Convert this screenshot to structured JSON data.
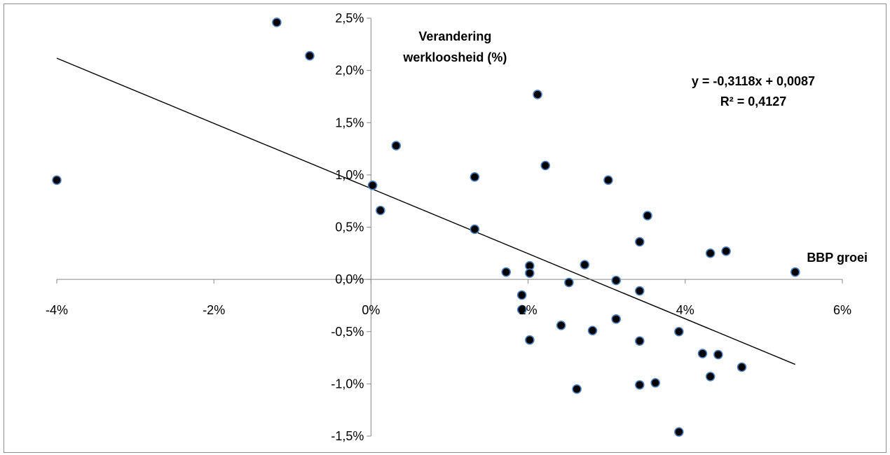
{
  "chart_data": {
    "type": "scatter",
    "title": "",
    "xlabel": "BBP groei",
    "ylabel_lines": [
      "Verandering",
      "werkloosheid (%)"
    ],
    "xlim": [
      -0.04,
      0.06
    ],
    "ylim": [
      -0.015,
      0.025
    ],
    "x_tick_labels": [
      "-4%",
      "-2%",
      "0%",
      "2%",
      "4%",
      "6%"
    ],
    "x_tick_values": [
      -0.04,
      -0.02,
      0.0,
      0.02,
      0.04,
      0.06
    ],
    "y_tick_labels": [
      "2,5%",
      "2,0%",
      "1,5%",
      "1,0%",
      "0,5%",
      "0,0%",
      "-0,5%",
      "-1,0%",
      "-1,5%"
    ],
    "y_tick_values": [
      0.025,
      0.02,
      0.015,
      0.01,
      0.005,
      0.0,
      -0.005,
      -0.01,
      -0.015
    ],
    "grid": false,
    "legend": "none",
    "trendline": {
      "slope": -0.3118,
      "intercept": 0.0087,
      "x_range": [
        -0.04,
        0.054
      ],
      "equation": "y = -0,3118x + 0,0087",
      "r_squared": "R² = 0,4127"
    },
    "series": [
      {
        "marker_color": "#000000",
        "marker_edge": "#4f81bd",
        "points": [
          [
            -0.04,
            0.0095
          ],
          [
            -0.012,
            0.0246
          ],
          [
            -0.0078,
            0.0214
          ],
          [
            0.0002,
            0.009
          ],
          [
            0.0012,
            0.0066
          ],
          [
            0.0032,
            0.0128
          ],
          [
            0.0132,
            0.0098
          ],
          [
            0.0132,
            0.0048
          ],
          [
            0.0172,
            0.0007
          ],
          [
            0.0192,
            -0.0015
          ],
          [
            0.0192,
            -0.0029
          ],
          [
            0.0202,
            0.0013
          ],
          [
            0.0202,
            0.0006
          ],
          [
            0.0202,
            -0.0058
          ],
          [
            0.0212,
            0.0177
          ],
          [
            0.0222,
            0.0109
          ],
          [
            0.0242,
            -0.0044
          ],
          [
            0.0252,
            -0.0003
          ],
          [
            0.0262,
            -0.0105
          ],
          [
            0.0272,
            0.0014
          ],
          [
            0.0282,
            -0.0049
          ],
          [
            0.0302,
            0.0095
          ],
          [
            0.0312,
            -0.0001
          ],
          [
            0.0312,
            -0.0038
          ],
          [
            0.0342,
            0.0036
          ],
          [
            0.0342,
            -0.0011
          ],
          [
            0.0342,
            -0.0059
          ],
          [
            0.0342,
            -0.0101
          ],
          [
            0.0352,
            0.0061
          ],
          [
            0.0362,
            -0.0099
          ],
          [
            0.0392,
            -0.005
          ],
          [
            0.0392,
            -0.0146
          ],
          [
            0.0422,
            -0.0071
          ],
          [
            0.0432,
            0.0025
          ],
          [
            0.0432,
            -0.0093
          ],
          [
            0.0442,
            -0.0072
          ],
          [
            0.0452,
            0.0027
          ],
          [
            0.0472,
            -0.0084
          ],
          [
            0.054,
            0.0007
          ]
        ]
      }
    ]
  }
}
